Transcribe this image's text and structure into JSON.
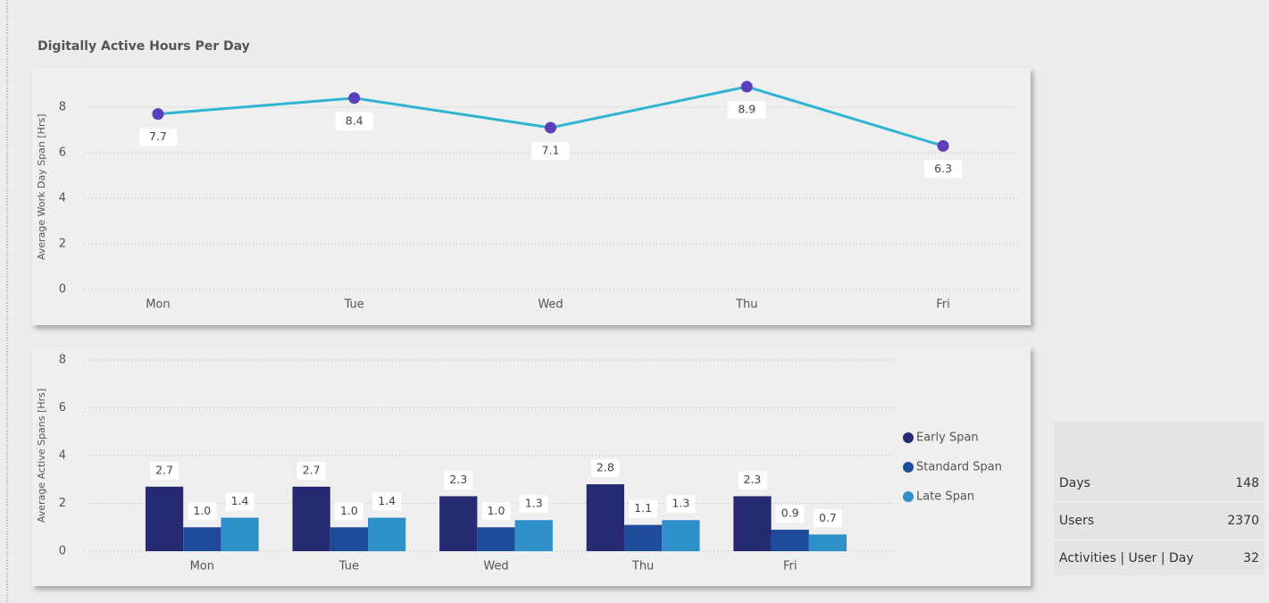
{
  "title": "Digitally Active Hours Per Day",
  "chart_data": [
    {
      "type": "line",
      "ylabel": "Average Work Day Span [Hrs]",
      "categories": [
        "Mon",
        "Tue",
        "Wed",
        "Thu",
        "Fri"
      ],
      "series": [
        {
          "name": "Average Work Day Span",
          "color": "#2fb5d3",
          "marker_color": "#5b3fb8",
          "values": [
            7.7,
            8.4,
            7.1,
            8.9,
            6.3
          ]
        }
      ],
      "ylim": [
        0,
        9
      ],
      "yticks": [
        0,
        2,
        4,
        6,
        8
      ],
      "grid": true
    },
    {
      "type": "bar",
      "ylabel": "Average Active Spans [Hrs]",
      "categories": [
        "Mon",
        "Tue",
        "Wed",
        "Thu",
        "Fri"
      ],
      "series": [
        {
          "name": "Early Span",
          "color": "#262a73",
          "values": [
            2.7,
            2.7,
            2.3,
            2.8,
            2.3
          ],
          "value_labels": [
            "2.7",
            "2.7",
            "2.3",
            "2.8",
            "2.3"
          ]
        },
        {
          "name": "Standard Span",
          "color": "#1f4c9a",
          "values": [
            1.0,
            1.0,
            1.0,
            1.1,
            0.9
          ],
          "value_labels": [
            "1.0",
            "1.0",
            "1.0",
            "1.1",
            "0.9"
          ]
        },
        {
          "name": "Late Span",
          "color": "#2e8fcb",
          "values": [
            1.4,
            1.4,
            1.3,
            1.3,
            0.7
          ],
          "value_labels": [
            "1.4",
            "1.4",
            "1.3",
            "1.3",
            "0.7"
          ]
        }
      ],
      "ylim": [
        0,
        8
      ],
      "yticks": [
        0,
        2,
        4,
        6,
        8
      ],
      "grid": true,
      "legend": "right"
    }
  ],
  "table": {
    "rows": [
      [
        "Days",
        "148"
      ],
      [
        "Users",
        "2370"
      ],
      [
        "Activities | User | Day",
        "32"
      ]
    ]
  }
}
